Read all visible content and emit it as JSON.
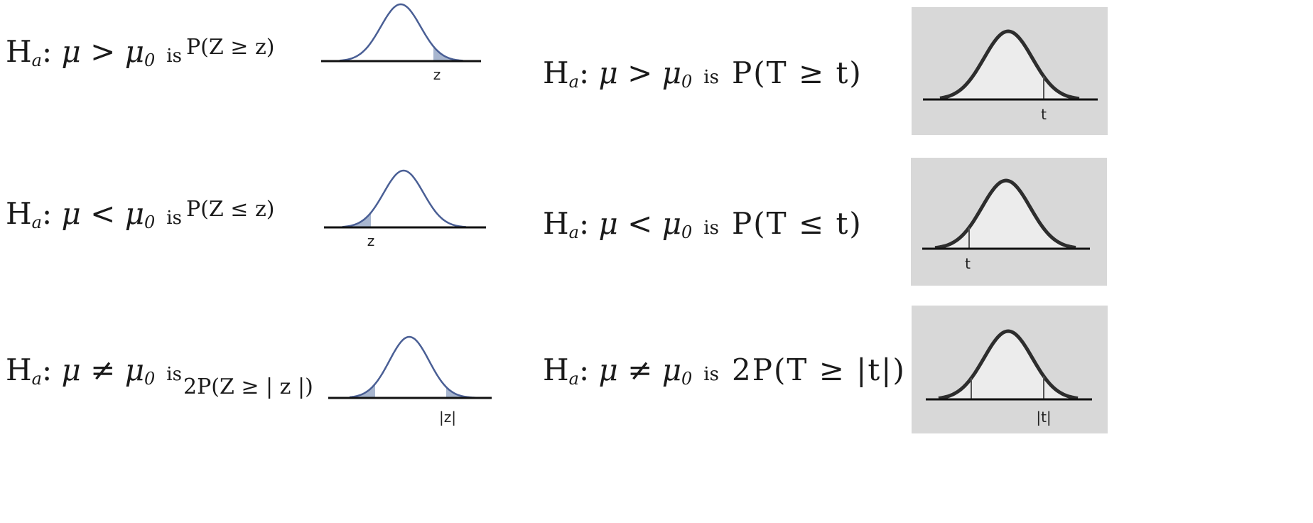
{
  "z_rows": [
    {
      "h": "H",
      "sub": "a",
      "mu": "μ",
      "op": ">",
      "mu0": "μ",
      "zero": "0",
      "is": "is",
      "prob": "P(Z ≥ z)",
      "label": "z",
      "tail": "right"
    },
    {
      "h": "H",
      "sub": "a",
      "mu": "μ",
      "op": "<",
      "mu0": "μ",
      "zero": "0",
      "is": "is",
      "prob": "P(Z ≤ z)",
      "label": "z",
      "tail": "left"
    },
    {
      "h": "H",
      "sub": "a",
      "mu": "μ",
      "op": "≠",
      "mu0": "μ",
      "zero": "0",
      "is": "is",
      "prob": "2P(Z ≥ | z |)",
      "label": "|z|",
      "tail": "both"
    }
  ],
  "t_rows": [
    {
      "h": "H",
      "sub": "a",
      "mu": "μ",
      "op": ">",
      "mu0": "μ",
      "zero": "0",
      "is": "is",
      "prob": "P(T ≥ t)",
      "label": "t",
      "tail": "right"
    },
    {
      "h": "H",
      "sub": "a",
      "mu": "μ",
      "op": "<",
      "mu0": "μ",
      "zero": "0",
      "is": "is",
      "prob": "P(T ≤ t)",
      "label": "t",
      "tail": "left"
    },
    {
      "h": "H",
      "sub": "a",
      "mu": "μ",
      "op": "≠",
      "mu0": "μ",
      "zero": "0",
      "is": "is",
      "prob": "2P(T ≥ |t|)",
      "label": "|t|",
      "tail": "both"
    }
  ],
  "colors": {
    "z_curve": "#4a5f95",
    "z_shade": "#a8b6cf",
    "t_curve": "#2d2d2d",
    "t_panel": "#d8d8d8",
    "t_fill": "#ececec"
  }
}
